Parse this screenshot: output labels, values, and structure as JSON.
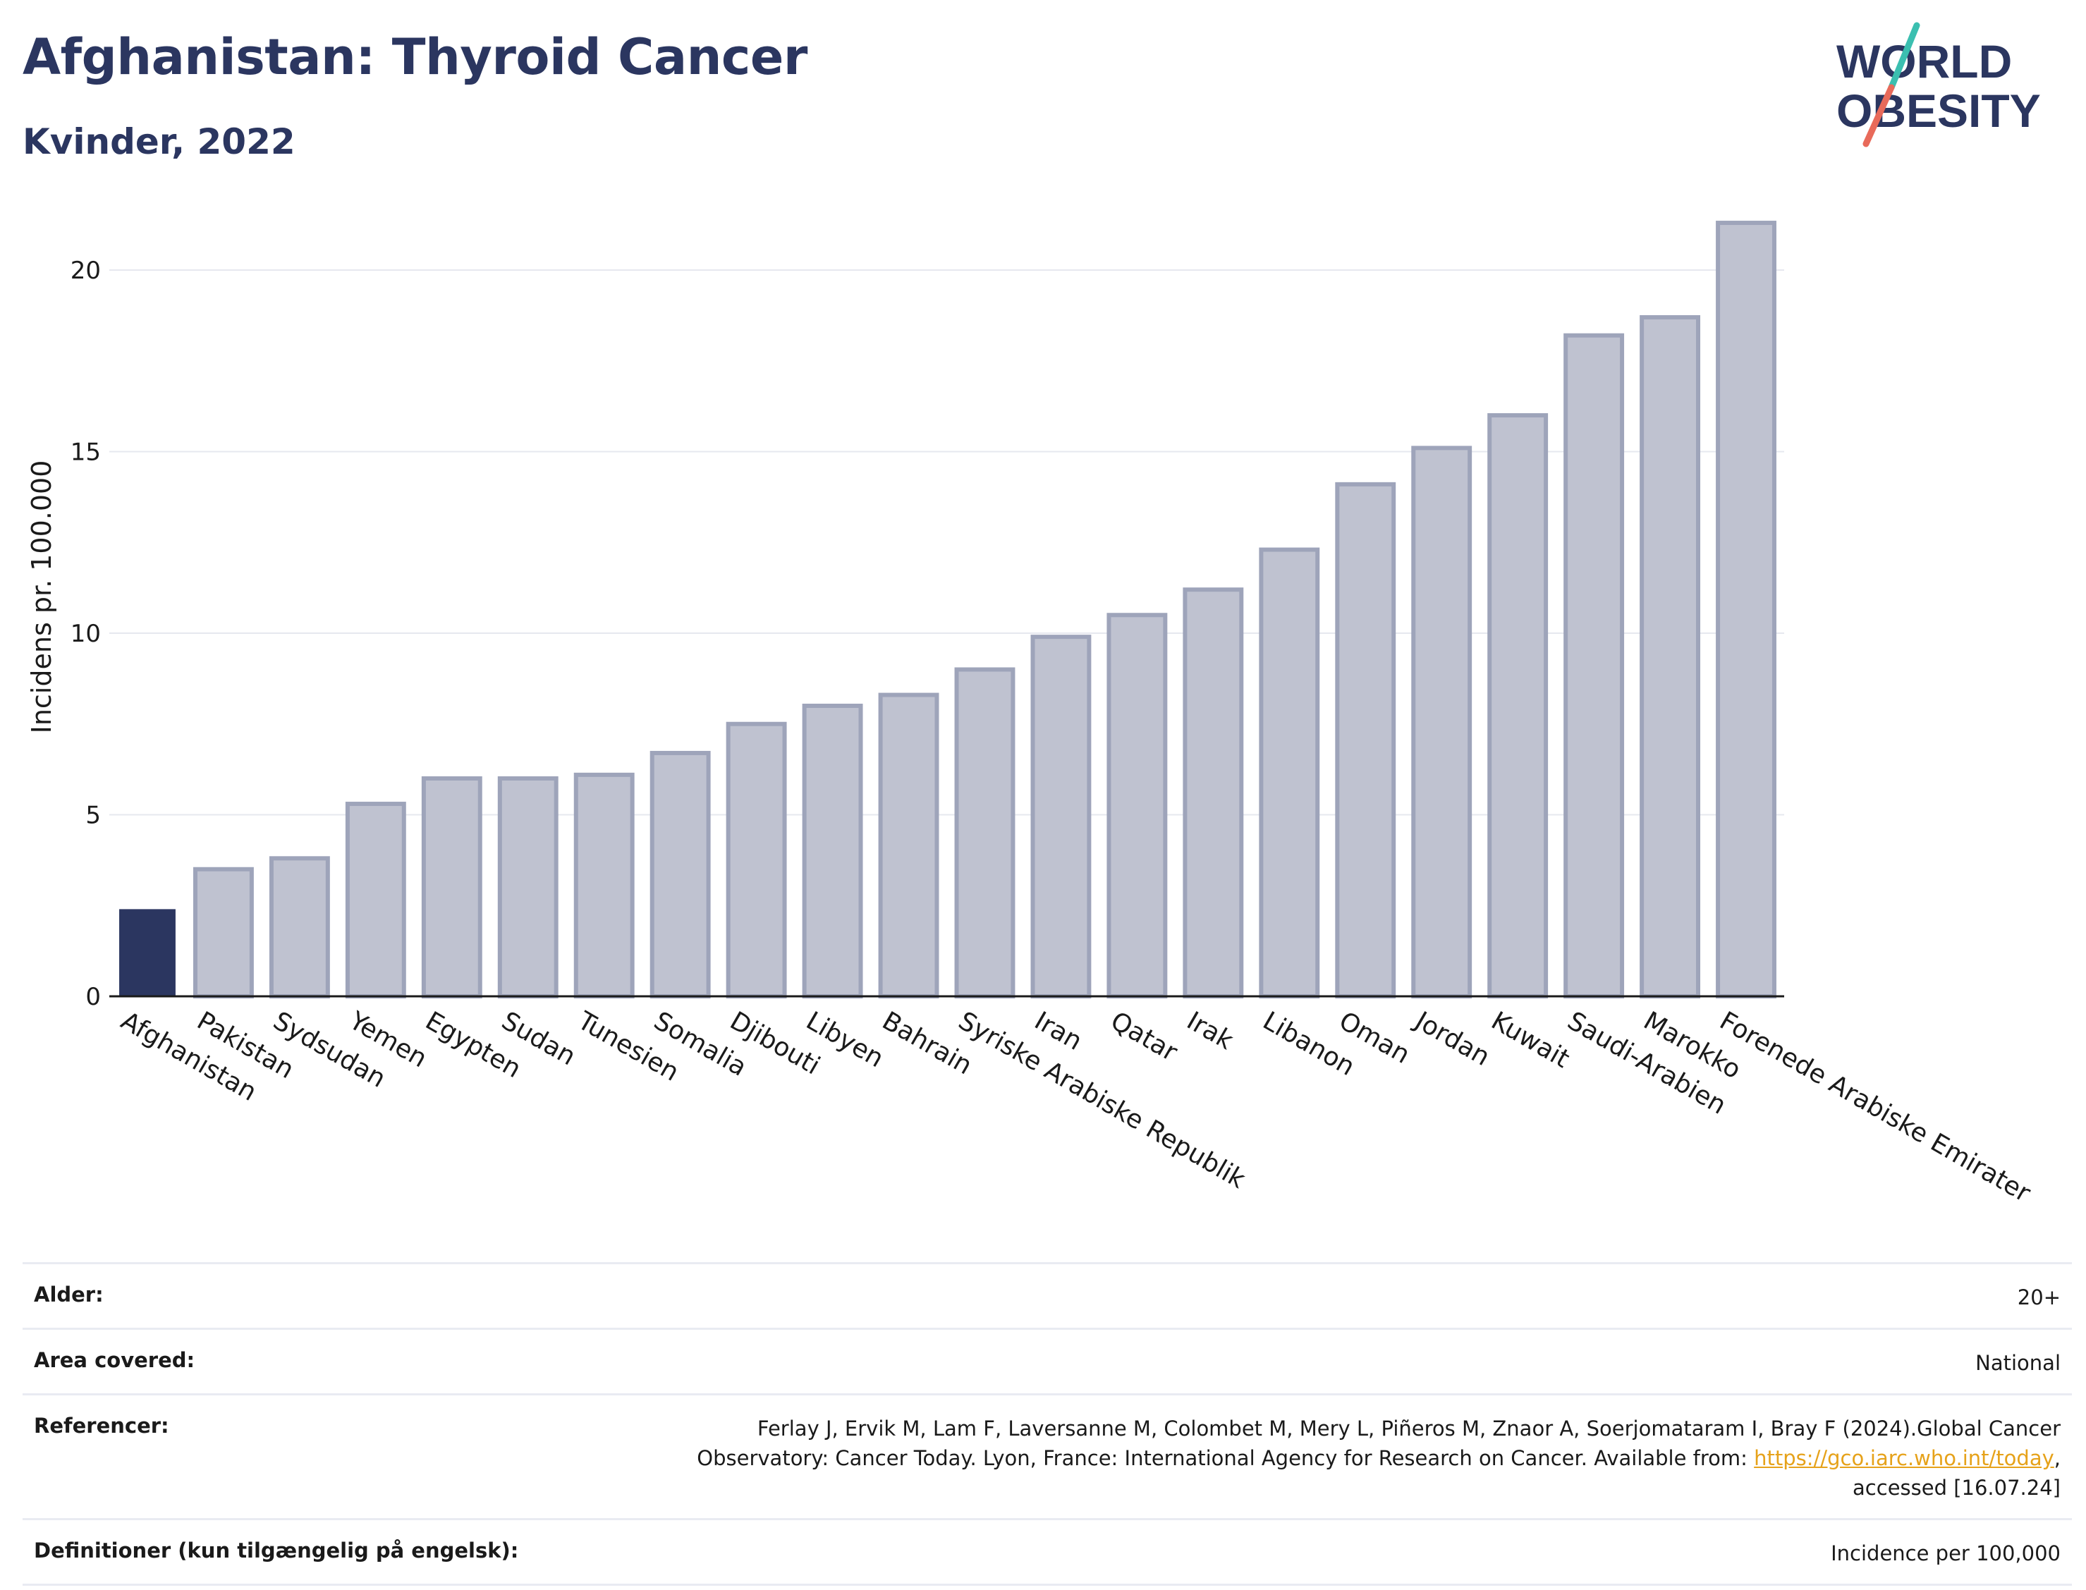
{
  "header": {
    "title": "Afghanistan: Thyroid Cancer",
    "subtitle": "Kvinder, 2022"
  },
  "logo": {
    "line1": "WORLD",
    "line2": "OBESITY",
    "colors": {
      "text": "#2b3660",
      "slash_top": "#3bbfb0",
      "slash_bottom": "#e86a5a"
    }
  },
  "chart_data": {
    "type": "bar",
    "ylabel": "Incidens pr. 100.000",
    "ylim": [
      0,
      22
    ],
    "yticks": [
      0,
      5,
      10,
      15,
      20
    ],
    "grid": true,
    "highlight_category": "Afghanistan",
    "colors": {
      "highlight": "#2b3660",
      "other_fill": "#bfc2d0",
      "other_stroke": "#9ea4ba"
    },
    "categories": [
      "Afghanistan",
      "Pakistan",
      "Sydsudan",
      "Yemen",
      "Egypten",
      "Sudan",
      "Tunesien",
      "Somalia",
      "Djibouti",
      "Libyen",
      "Bahrain",
      "Syriske Arabiske Republik",
      "Iran",
      "Qatar",
      "Irak",
      "Libanon",
      "Oman",
      "Jordan",
      "Kuwait",
      "Saudi-Arabien",
      "Marokko",
      "Forenede Arabiske Emirater"
    ],
    "values": [
      2.4,
      3.5,
      3.8,
      5.3,
      6.0,
      6.0,
      6.1,
      6.7,
      7.5,
      8.0,
      8.3,
      9.0,
      9.9,
      10.5,
      11.2,
      12.3,
      14.1,
      15.1,
      16.0,
      18.2,
      18.7,
      21.3
    ]
  },
  "meta": {
    "age_label": "Alder:",
    "age_value": "20+",
    "area_label": "Area covered:",
    "area_value": "National",
    "ref_label": "Referencer:",
    "ref_line1": "Ferlay J, Ervik M, Lam F, Laversanne M, Colombet M, Mery L, Piñeros M, Znaor A, Soerjomataram I, Bray F (2024).Global Cancer",
    "ref_line2_before": "Observatory: Cancer Today. Lyon, France: International Agency for Research on Cancer. Available from: ",
    "ref_link": "https://gco.iarc.who.int/today",
    "ref_line2_after": ",",
    "ref_line3": "accessed [16.07.24]",
    "def_label": "Definitioner (kun tilgængelig på engelsk):",
    "def_value": "Incidence per 100,000"
  }
}
